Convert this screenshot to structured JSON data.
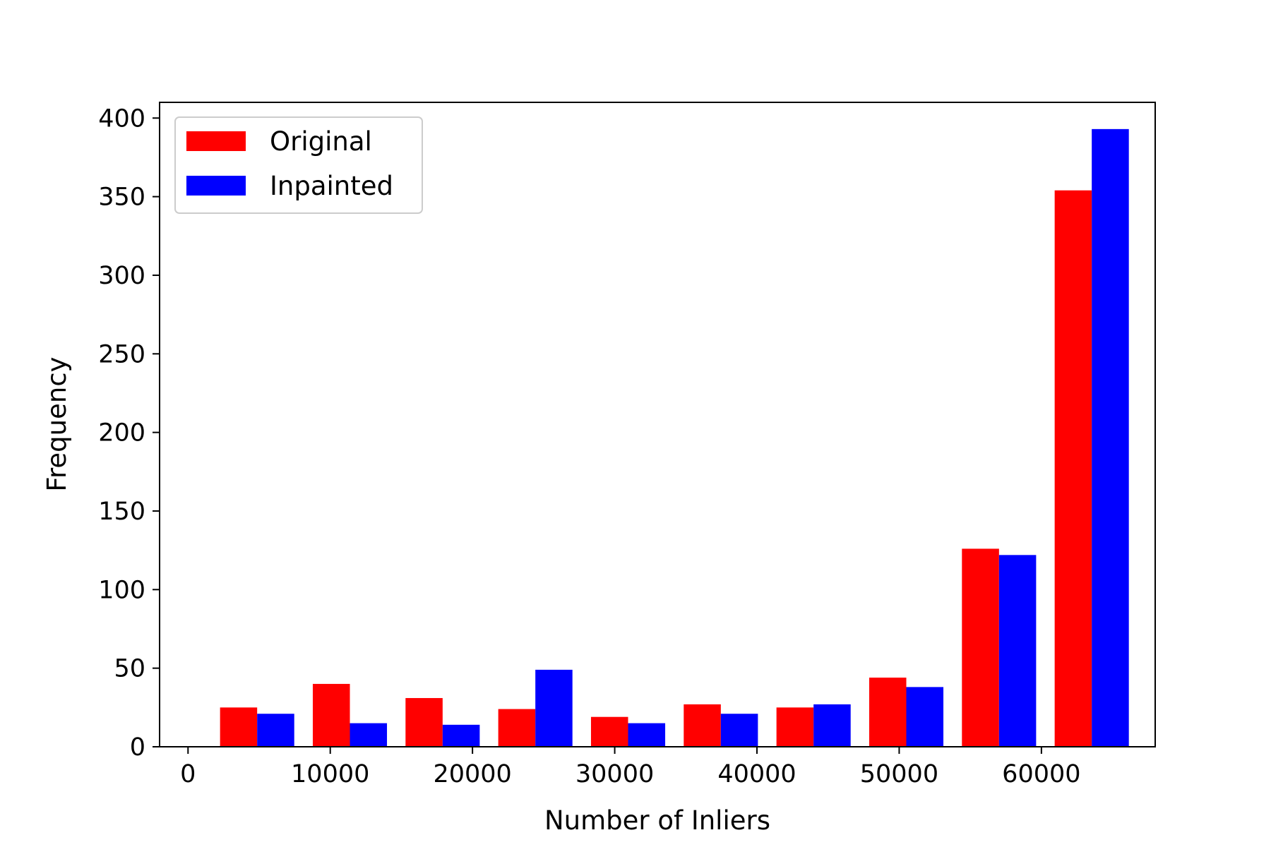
{
  "colors": {
    "original": "#ff0000",
    "inpainted": "#0000ff"
  },
  "chart_data": {
    "type": "bar",
    "title": "",
    "xlabel": "Number of Inliers",
    "ylabel": "Frequency",
    "xlim": [
      -2000,
      68000
    ],
    "ylim": [
      0,
      410
    ],
    "xticks": [
      0,
      10000,
      20000,
      30000,
      40000,
      50000,
      60000
    ],
    "yticks": [
      0,
      50,
      100,
      150,
      200,
      250,
      300,
      350,
      400
    ],
    "bin_edges": [
      1600,
      8120,
      14640,
      21160,
      27680,
      34200,
      40720,
      47240,
      53760,
      60280,
      66800
    ],
    "legend_position": "upper left",
    "grid": false,
    "series": [
      {
        "name": "Original",
        "color": "#ff0000",
        "values": [
          25,
          40,
          31,
          24,
          19,
          27,
          25,
          44,
          126,
          354
        ]
      },
      {
        "name": "Inpainted",
        "color": "#0000ff",
        "values": [
          21,
          15,
          14,
          49,
          15,
          21,
          27,
          38,
          122,
          393
        ]
      }
    ]
  }
}
